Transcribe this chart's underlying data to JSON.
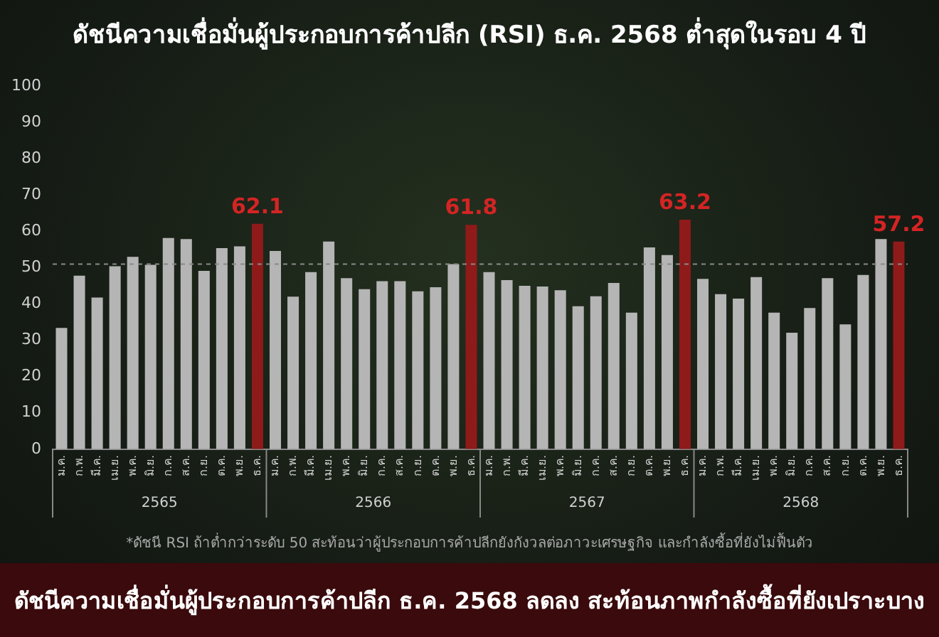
{
  "chart_data": {
    "type": "bar",
    "title": "ดัชนีความเชื่อมั่นผู้ประกอบการค้าปลีก (RSI) ธ.ค. 2568 ต่ำสุดในรอบ 4 ปี",
    "subtitle": "ดัชนีความเชื่อมั่นผู้ประกอบการค้าปลีก ธ.ค. 2568 ลดลง สะท้อนภาพกำลังซื้อที่ยังเปราะบาง",
    "categories": [
      "ม.ค.",
      "ก.พ.",
      "มี.ค.",
      "เม.ย.",
      "พ.ค.",
      "มิ.ย.",
      "ก.ค.",
      "ส.ค.",
      "ก.ย.",
      "ต.ค.",
      "พ.ย.",
      "ธ.ค.",
      "ม.ค.",
      "ก.พ.",
      "มี.ค.",
      "เม.ย.",
      "พ.ค.",
      "มิ.ย.",
      "ก.ค.",
      "ส.ค.",
      "ก.ย.",
      "ต.ค.",
      "พ.ย.",
      "ธ.ค.",
      "ม.ค.",
      "ก.พ.",
      "มี.ค.",
      "เม.ย.",
      "พ.ค.",
      "มิ.ย.",
      "ก.ค.",
      "ส.ค.",
      "ก.ย.",
      "ต.ค.",
      "พ.ย.",
      "ธ.ค.",
      "ม.ค.",
      "ก.พ.",
      "มี.ค.",
      "เม.ย.",
      "พ.ค.",
      "มิ.ย.",
      "ก.ค.",
      "ส.ค.",
      "ก.ย.",
      "ต.ค.",
      "พ.ย.",
      "ธ.ค."
    ],
    "values": [
      33.4,
      47.8,
      41.8,
      50.4,
      53.0,
      50.8,
      58.2,
      57.9,
      49.1,
      55.4,
      55.9,
      62.1,
      54.6,
      42.0,
      48.8,
      57.2,
      47.1,
      44.1,
      46.3,
      46.3,
      43.5,
      44.6,
      51.0,
      61.8,
      48.8,
      46.6,
      45.0,
      44.8,
      43.8,
      39.4,
      42.1,
      45.8,
      37.6,
      55.6,
      53.5,
      63.2,
      46.9,
      42.7,
      41.5,
      47.4,
      37.6,
      32.1,
      38.9,
      47.1,
      34.4,
      48.0,
      57.9,
      57.2
    ],
    "colors": [
      "#b5b5b5",
      "#b5b5b5",
      "#b5b5b5",
      "#b5b5b5",
      "#b5b5b5",
      "#b5b5b5",
      "#b5b5b5",
      "#b5b5b5",
      "#b5b5b5",
      "#b5b5b5",
      "#b5b5b5",
      "#8e1a1a",
      "#b5b5b5",
      "#b5b5b5",
      "#b5b5b5",
      "#b5b5b5",
      "#b5b5b5",
      "#b5b5b5",
      "#b5b5b5",
      "#b5b5b5",
      "#b5b5b5",
      "#b5b5b5",
      "#b5b5b5",
      "#8e1a1a",
      "#b5b5b5",
      "#b5b5b5",
      "#b5b5b5",
      "#b5b5b5",
      "#b5b5b5",
      "#b5b5b5",
      "#b5b5b5",
      "#b5b5b5",
      "#b5b5b5",
      "#b5b5b5",
      "#b5b5b5",
      "#8e1a1a",
      "#b5b5b5",
      "#b5b5b5",
      "#b5b5b5",
      "#b5b5b5",
      "#b5b5b5",
      "#b5b5b5",
      "#b5b5b5",
      "#b5b5b5",
      "#b5b5b5",
      "#b5b5b5",
      "#b5b5b5",
      "#8e1a1a"
    ],
    "value_labels": [
      null,
      null,
      null,
      null,
      null,
      null,
      null,
      null,
      null,
      null,
      null,
      "62.1",
      null,
      null,
      null,
      null,
      null,
      null,
      null,
      null,
      null,
      null,
      null,
      "61.8",
      null,
      null,
      null,
      null,
      null,
      null,
      null,
      null,
      null,
      null,
      null,
      "63.2",
      null,
      null,
      null,
      null,
      null,
      null,
      null,
      null,
      null,
      null,
      null,
      "57.2"
    ],
    "ylim": [
      0,
      100
    ],
    "yticks": [
      0,
      10,
      20,
      30,
      40,
      50,
      60,
      70,
      80,
      90,
      100
    ],
    "grid": false,
    "legend": false,
    "ref_lines": [
      {
        "axis": "y",
        "value": 51,
        "color": "#8a8a8a",
        "line_style": "dashed"
      }
    ],
    "annotations": [
      "2565",
      "2566",
      "2567",
      "2568",
      "*ดัชนี RSI ถ้าต่ำกว่าระดับ 50 สะท้อนว่าผู้ประกอบการค้าปลีกยังกังวลต่อภาวะเศรษฐกิจ และกำลังซื้อที่ยังไม่ฟื้นตัว"
    ]
  }
}
